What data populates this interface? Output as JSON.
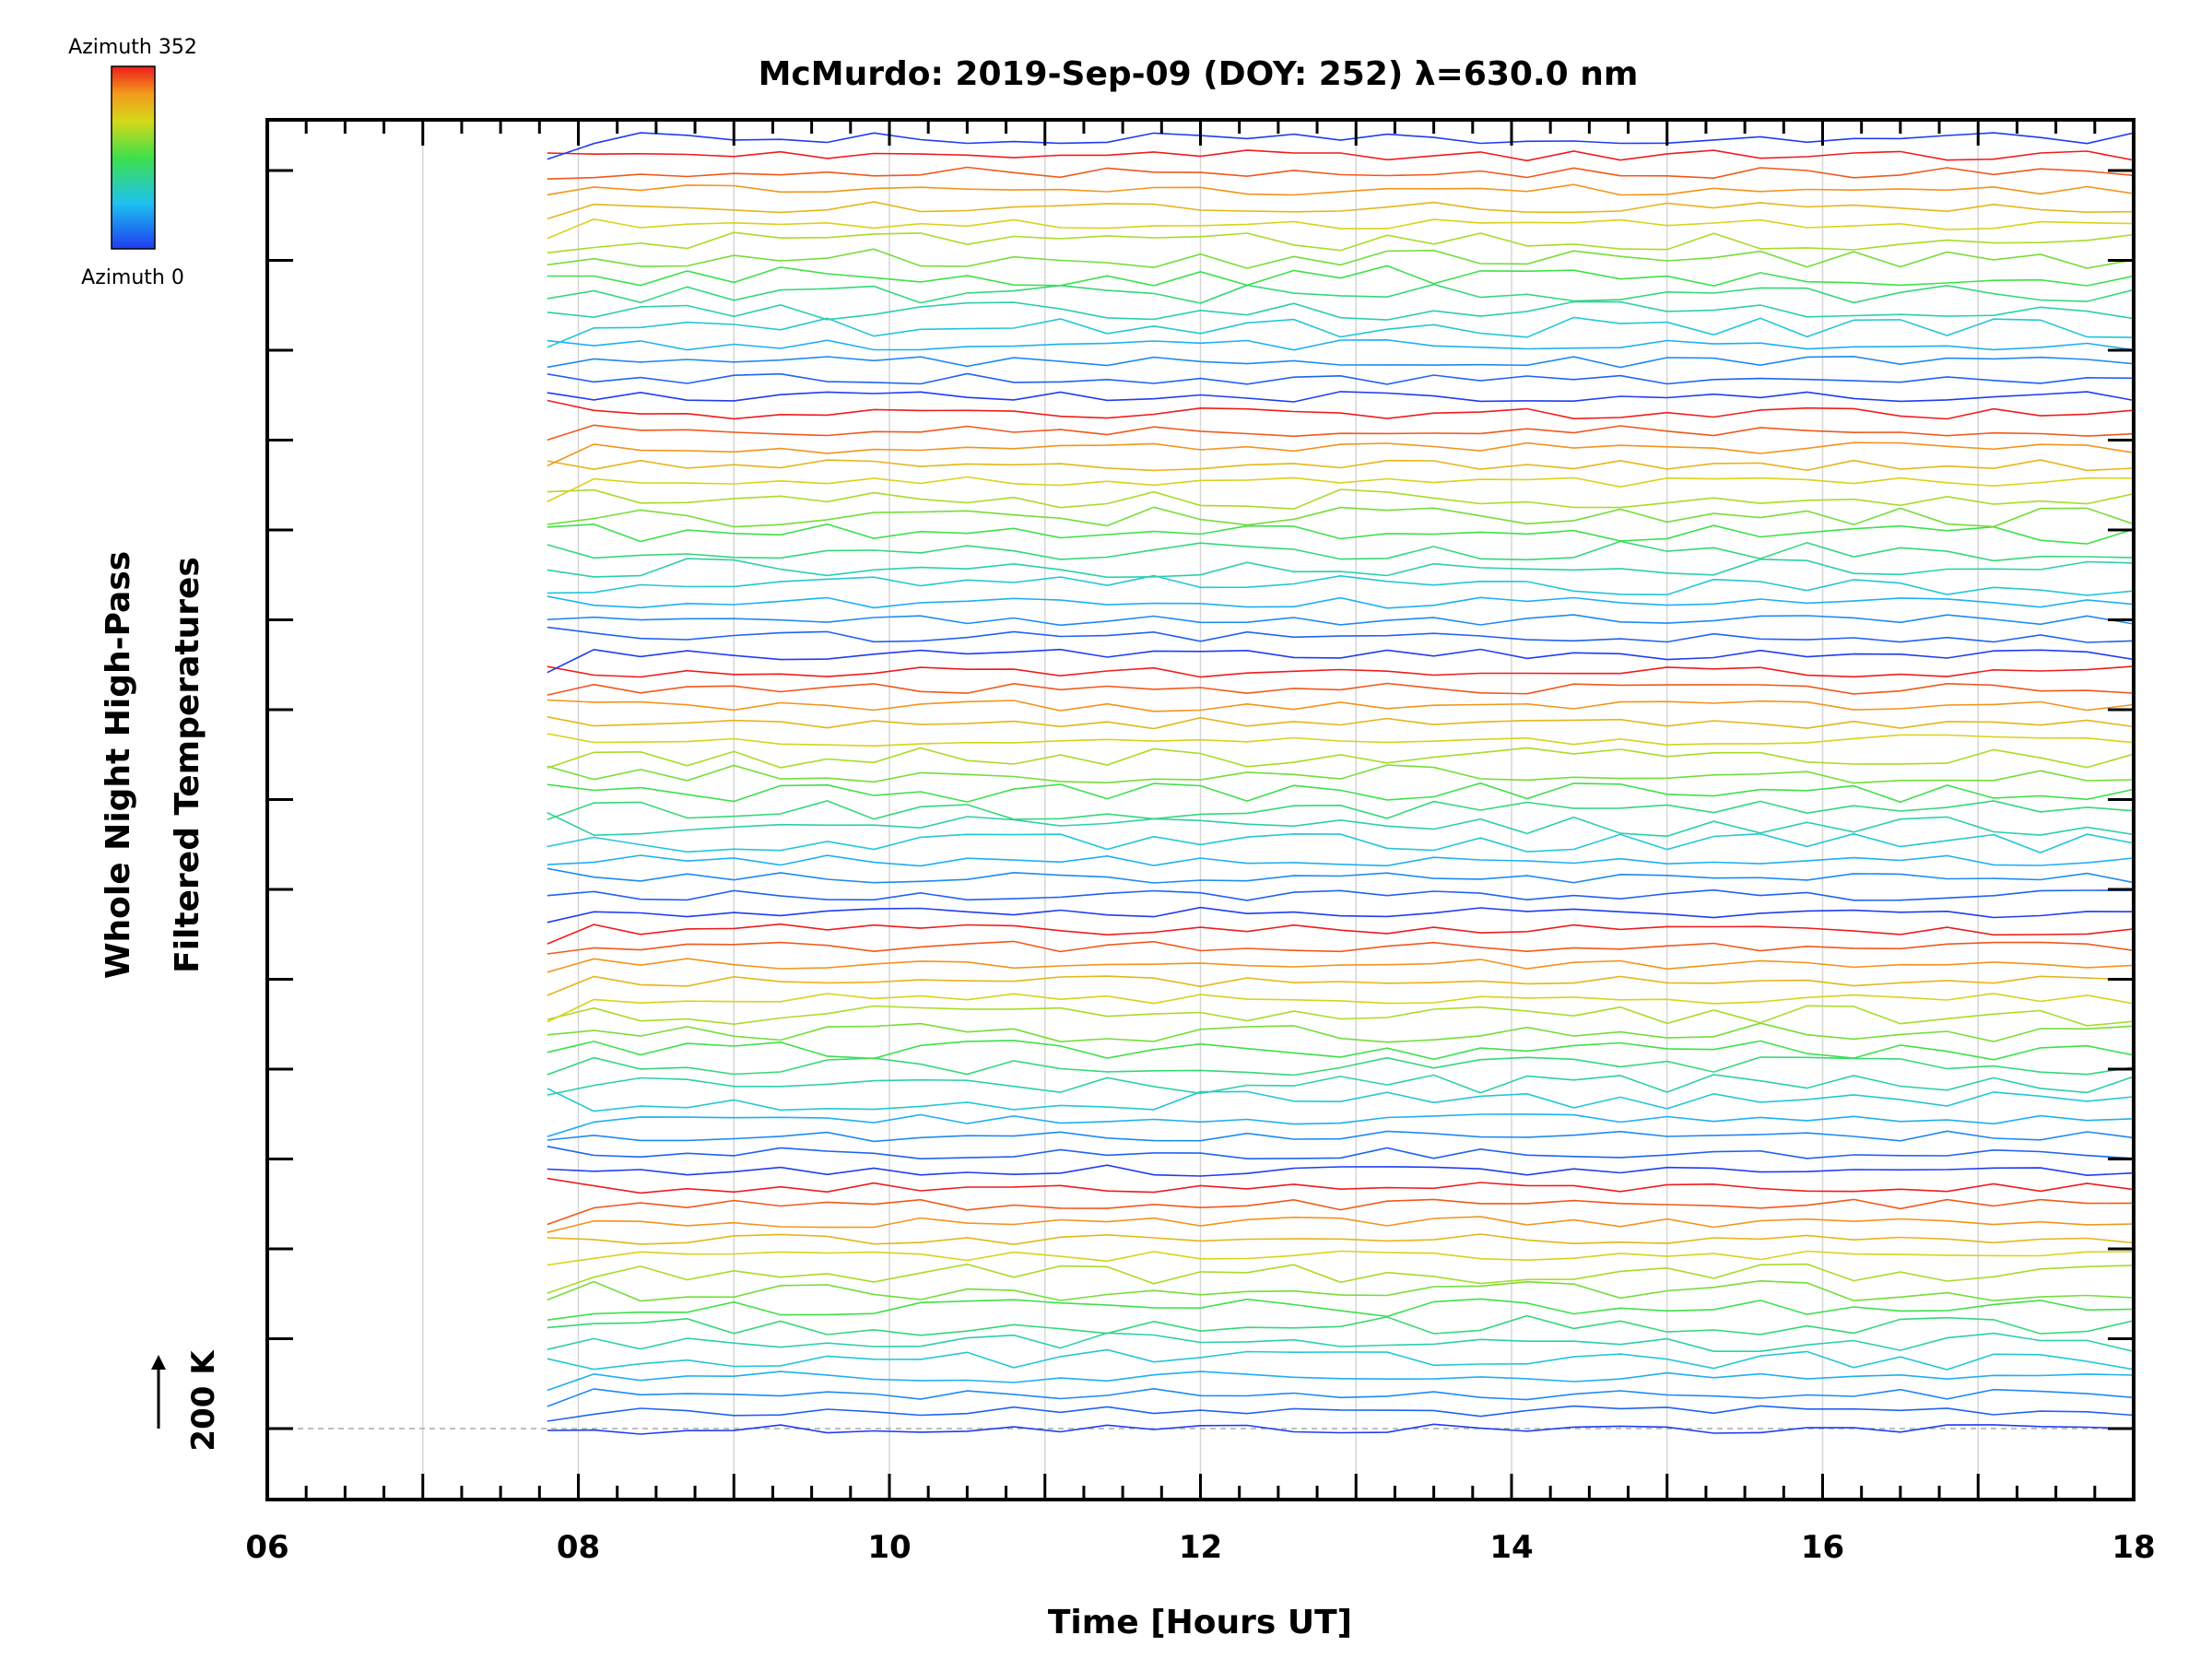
{
  "chart_data": {
    "type": "line",
    "title": "McMurdo: 2019-Sep-09 (DOY: 252) λ=630.0 nm",
    "xlabel": "Time [Hours UT]",
    "ylabel_lines": [
      "Whole Night High-Pass",
      "Filtered Temperatures"
    ],
    "xlim": [
      6,
      18
    ],
    "x_ticks": [
      "06",
      "08",
      "10",
      "12",
      "14",
      "16",
      "18"
    ],
    "x_tick_values": [
      6,
      8,
      10,
      12,
      14,
      16,
      18
    ],
    "x_minor_step": 0.25,
    "grid_hours": [
      7,
      8,
      9,
      10,
      11,
      12,
      13,
      14,
      15,
      16,
      17
    ],
    "reference_label": "200 K",
    "colorbar": {
      "top_label": "Azimuth 352",
      "bottom_label": "Azimuth 0"
    },
    "stacking": {
      "n_series": 76,
      "group_size": 15,
      "y_axis_ticks": 15,
      "description": "Stacked high-pass filtered temperature traces, one per azimuth, colour-coded from azimuth 0 (blue) to 352 (red); each repeating group of traces runs blue to red"
    },
    "time_start": 7.8,
    "time_end": 18.0,
    "time_step": 0.3
  }
}
